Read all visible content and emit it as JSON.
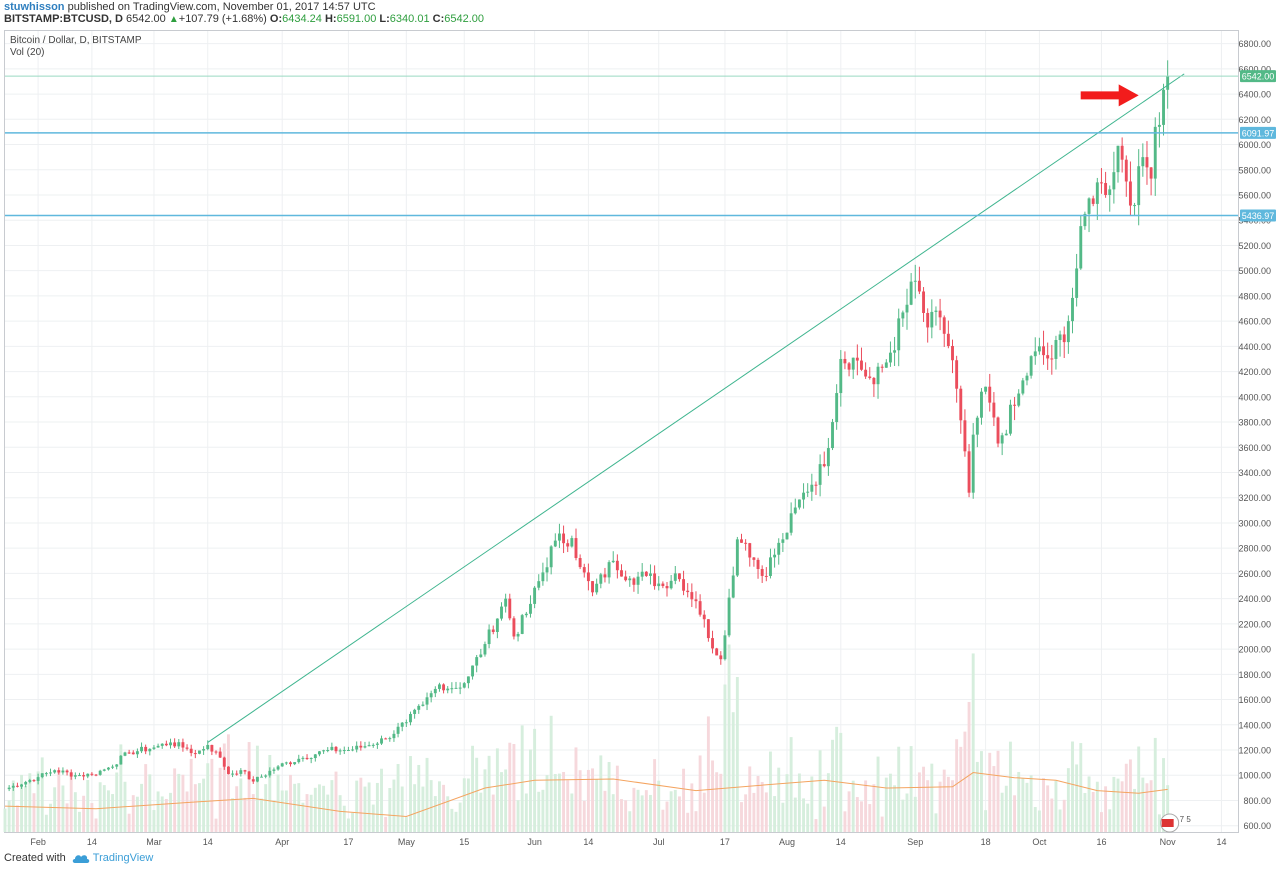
{
  "header": {
    "author": "stuwhisson",
    "published_text": "published on TradingView.com, November 01, 2017 14:57 UTC",
    "symbol": "BITSTAMP:BTCUSD, D",
    "last": "6542.00",
    "change": "+107.79 (+1.68%)",
    "o_label": "O:",
    "o_value": "6434.24",
    "h_label": "H:",
    "h_value": "6591.00",
    "l_label": "L:",
    "l_value": "6340.01",
    "c_label": "C:",
    "c_value": "6542.00",
    "up_icon": "triangle-up-icon"
  },
  "legend": {
    "title": "Bitcoin / Dollar, D, BITSTAMP",
    "volume": "Vol (20)"
  },
  "footer": {
    "created_with": "Created with",
    "brand": "TradingView",
    "brand_icon": "tradingview-cloud-icon"
  },
  "annotation": {
    "arrow_icon": "red-arrow-right-icon",
    "arrow_color": "#f21c1c",
    "flag_text": "7 5"
  },
  "colors": {
    "up": "#53b987",
    "down": "#eb4d5c",
    "up_volume": "#d6eedd",
    "down_volume": "#f6d8dc",
    "horizontal_line": "#5fb8dd",
    "trend_line": "#3fb58f",
    "volume_ma": "#f4a460",
    "grid": "#eef0f2"
  },
  "chart_data": {
    "type": "candlestick",
    "title": "Bitcoin / Dollar, D, BITSTAMP",
    "ylim": [
      550,
      6900
    ],
    "y_ticks": [
      "6800.00",
      "6600.00",
      "6400.00",
      "6200.00",
      "6000.00",
      "5800.00",
      "5600.00",
      "5400.00",
      "5200.00",
      "5000.00",
      "4800.00",
      "4600.00",
      "4400.00",
      "4200.00",
      "4000.00",
      "3800.00",
      "3600.00",
      "3400.00",
      "3200.00",
      "3000.00",
      "2800.00",
      "2600.00",
      "2400.00",
      "2200.00",
      "2000.00",
      "1800.00",
      "1600.00",
      "1400.00",
      "1200.00",
      "1000.00",
      "800.00",
      "600.00"
    ],
    "x_range": [
      "2017-01-24",
      "2017-11-18"
    ],
    "x_ticks": [
      {
        "date": "2017-02-01",
        "label": "Feb"
      },
      {
        "date": "2017-02-14",
        "label": "14"
      },
      {
        "date": "2017-03-01",
        "label": "Mar"
      },
      {
        "date": "2017-03-14",
        "label": "14"
      },
      {
        "date": "2017-04-01",
        "label": "Apr"
      },
      {
        "date": "2017-04-17",
        "label": "17"
      },
      {
        "date": "2017-05-01",
        "label": "May"
      },
      {
        "date": "2017-05-15",
        "label": "15"
      },
      {
        "date": "2017-06-01",
        "label": "Jun"
      },
      {
        "date": "2017-06-14",
        "label": "14"
      },
      {
        "date": "2017-07-01",
        "label": "Jul"
      },
      {
        "date": "2017-07-17",
        "label": "17"
      },
      {
        "date": "2017-08-01",
        "label": "Aug"
      },
      {
        "date": "2017-08-14",
        "label": "14"
      },
      {
        "date": "2017-09-01",
        "label": "Sep"
      },
      {
        "date": "2017-09-18",
        "label": "18"
      },
      {
        "date": "2017-10-01",
        "label": "Oct"
      },
      {
        "date": "2017-10-16",
        "label": "16"
      },
      {
        "date": "2017-11-01",
        "label": "Nov"
      },
      {
        "date": "2017-11-14",
        "label": "14"
      }
    ],
    "close_path": [
      [
        "2017-01-24",
        890
      ],
      [
        "2017-02-01",
        985
      ],
      [
        "2017-02-05",
        1040
      ],
      [
        "2017-02-10",
        1000
      ],
      [
        "2017-02-14",
        1005
      ],
      [
        "2017-02-18",
        1060
      ],
      [
        "2017-02-23",
        1180
      ],
      [
        "2017-03-01",
        1220
      ],
      [
        "2017-03-05",
        1260
      ],
      [
        "2017-03-09",
        1210
      ],
      [
        "2017-03-11",
        1170
      ],
      [
        "2017-03-14",
        1240
      ],
      [
        "2017-03-17",
        1140
      ],
      [
        "2017-03-19",
        1010
      ],
      [
        "2017-03-22",
        1040
      ],
      [
        "2017-03-25",
        950
      ],
      [
        "2017-03-31",
        1070
      ],
      [
        "2017-04-05",
        1130
      ],
      [
        "2017-04-12",
        1200
      ],
      [
        "2017-04-17",
        1200
      ],
      [
        "2017-04-21",
        1230
      ],
      [
        "2017-04-26",
        1290
      ],
      [
        "2017-05-01",
        1420
      ],
      [
        "2017-05-05",
        1560
      ],
      [
        "2017-05-09",
        1720
      ],
      [
        "2017-05-12",
        1690
      ],
      [
        "2017-05-15",
        1730
      ],
      [
        "2017-05-20",
        2040
      ],
      [
        "2017-05-25",
        2400
      ],
      [
        "2017-05-27",
        2100
      ],
      [
        "2017-05-30",
        2280
      ],
      [
        "2017-06-06",
        2860
      ],
      [
        "2017-06-10",
        2880
      ],
      [
        "2017-06-12",
        2650
      ],
      [
        "2017-06-15",
        2450
      ],
      [
        "2017-06-20",
        2700
      ],
      [
        "2017-06-24",
        2560
      ],
      [
        "2017-06-28",
        2580
      ],
      [
        "2017-07-02",
        2500
      ],
      [
        "2017-07-05",
        2600
      ],
      [
        "2017-07-10",
        2380
      ],
      [
        "2017-07-15",
        1950
      ],
      [
        "2017-07-16",
        1920
      ],
      [
        "2017-07-20",
        2870
      ],
      [
        "2017-07-22",
        2840
      ],
      [
        "2017-07-26",
        2580
      ],
      [
        "2017-07-31",
        2870
      ],
      [
        "2017-08-05",
        3240
      ],
      [
        "2017-08-10",
        3450
      ],
      [
        "2017-08-14",
        4300
      ],
      [
        "2017-08-17",
        4310
      ],
      [
        "2017-08-22",
        4100
      ],
      [
        "2017-08-26",
        4350
      ],
      [
        "2017-09-01",
        4920
      ],
      [
        "2017-09-04",
        4550
      ],
      [
        "2017-09-07",
        4630
      ],
      [
        "2017-09-10",
        4290
      ],
      [
        "2017-09-14",
        3240
      ],
      [
        "2017-09-15",
        3700
      ],
      [
        "2017-09-18",
        4080
      ],
      [
        "2017-09-21",
        3630
      ],
      [
        "2017-09-25",
        3930
      ],
      [
        "2017-09-30",
        4360
      ],
      [
        "2017-10-04",
        4300
      ],
      [
        "2017-10-08",
        4600
      ],
      [
        "2017-10-12",
        5450
      ],
      [
        "2017-10-15",
        5700
      ],
      [
        "2017-10-17",
        5600
      ],
      [
        "2017-10-20",
        5990
      ],
      [
        "2017-10-24",
        5520
      ],
      [
        "2017-10-26",
        5900
      ],
      [
        "2017-10-28",
        5730
      ],
      [
        "2017-10-29",
        6140
      ],
      [
        "2017-10-31",
        6434
      ],
      [
        "2017-11-01",
        6542
      ]
    ],
    "volume_ma_path": [
      [
        "2017-01-24",
        760
      ],
      [
        "2017-02-15",
        740
      ],
      [
        "2017-03-10",
        790
      ],
      [
        "2017-03-25",
        820
      ],
      [
        "2017-04-15",
        720
      ],
      [
        "2017-05-01",
        680
      ],
      [
        "2017-05-20",
        900
      ],
      [
        "2017-06-01",
        960
      ],
      [
        "2017-06-20",
        970
      ],
      [
        "2017-07-10",
        880
      ],
      [
        "2017-07-25",
        920
      ],
      [
        "2017-08-10",
        960
      ],
      [
        "2017-08-25",
        900
      ],
      [
        "2017-09-10",
        910
      ],
      [
        "2017-09-15",
        1020
      ],
      [
        "2017-09-25",
        980
      ],
      [
        "2017-10-05",
        960
      ],
      [
        "2017-10-15",
        880
      ],
      [
        "2017-10-25",
        860
      ],
      [
        "2017-11-01",
        890
      ]
    ],
    "horizontal_levels": [
      {
        "value": 6542.0,
        "label": "6542.00",
        "label_color": "#53b987"
      },
      {
        "value": 6091.97,
        "label": "6091.97",
        "label_color": "#ffffff"
      },
      {
        "value": 5436.97,
        "label": "5436.97",
        "label_color": "#ffffff"
      }
    ],
    "trendline": {
      "from": [
        "2017-03-14",
        1260
      ],
      "to": [
        "2017-11-05",
        6560
      ]
    },
    "annotation_arrow": {
      "date": "2017-10-25",
      "value": 6390
    },
    "volume_reference": {
      "visible_range": [
        600,
        2200
      ]
    }
  }
}
